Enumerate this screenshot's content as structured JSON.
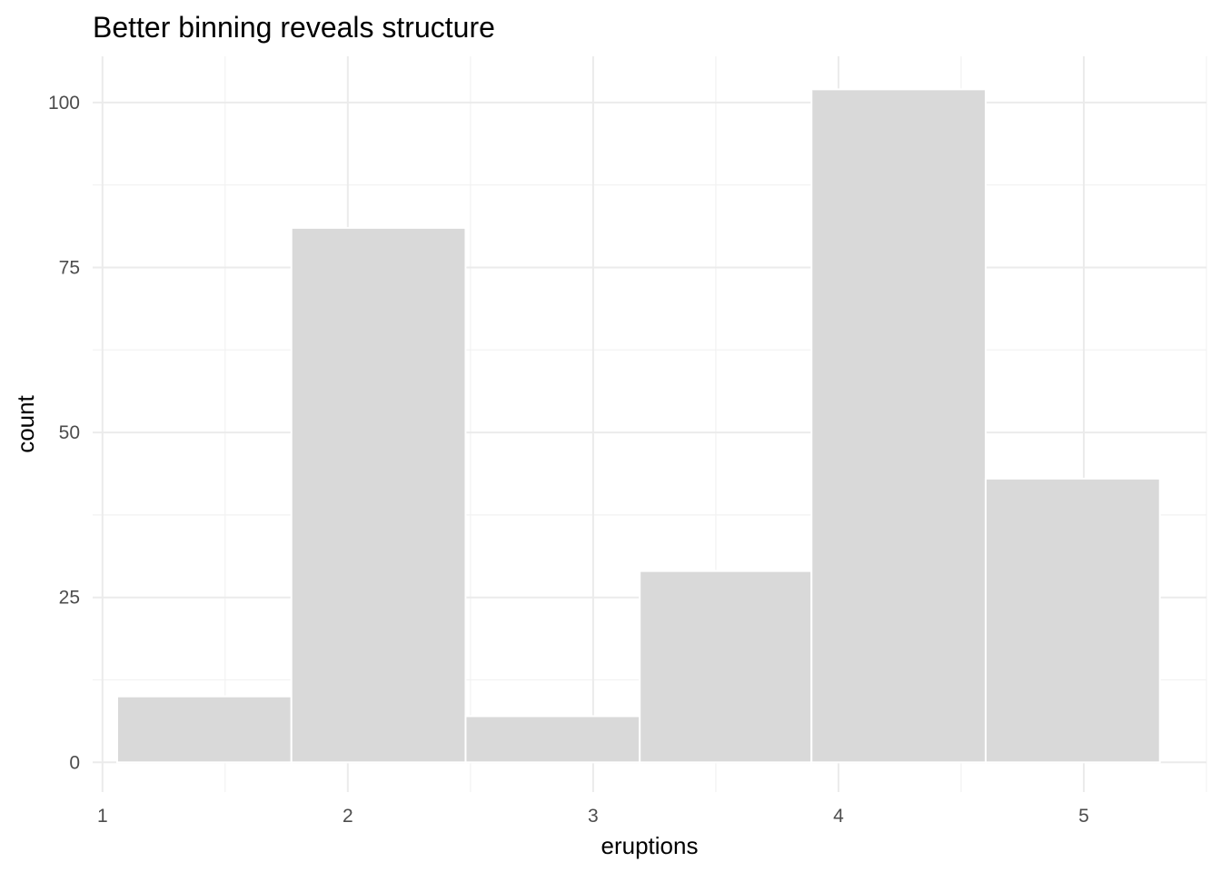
{
  "chart_data": {
    "type": "bar",
    "title": "Better binning reveals structure",
    "xlabel": "eruptions",
    "ylabel": "count",
    "xlim": [
      0.96,
      5.5
    ],
    "ylim": [
      -4.5,
      107
    ],
    "x_ticks": [
      1,
      2,
      3,
      4,
      5
    ],
    "y_ticks": [
      0,
      25,
      50,
      75,
      100
    ],
    "grid": true,
    "bar_color": "#d9d9d9",
    "bar_outline": "#ffffff",
    "bins": [
      {
        "x_start": 1.06,
        "x_end": 1.77,
        "count": 10
      },
      {
        "x_start": 1.77,
        "x_end": 2.48,
        "count": 81
      },
      {
        "x_start": 2.48,
        "x_end": 3.19,
        "count": 7
      },
      {
        "x_start": 3.19,
        "x_end": 3.89,
        "count": 29
      },
      {
        "x_start": 3.89,
        "x_end": 4.6,
        "count": 102
      },
      {
        "x_start": 4.6,
        "x_end": 5.31,
        "count": 43
      }
    ]
  }
}
